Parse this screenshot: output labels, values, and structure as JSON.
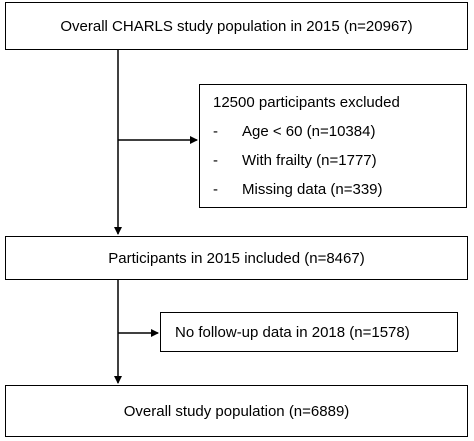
{
  "boxes": {
    "top": "Overall CHARLS study population in 2015 (n=20967)",
    "excluded": {
      "title": "12500 participants excluded",
      "items": [
        {
          "bullet": "-",
          "text": "Age < 60 (n=10384)"
        },
        {
          "bullet": "-",
          "text": "With frailty (n=1777)"
        },
        {
          "bullet": "-",
          "text": "Missing data (n=339)"
        }
      ]
    },
    "included": "Participants in 2015 included (n=8467)",
    "followup": "No follow-up data in 2018 (n=1578)",
    "final": "Overall study population (n=6889)"
  },
  "colors": {
    "line": "#000000",
    "box_fill": "#ffffff"
  }
}
